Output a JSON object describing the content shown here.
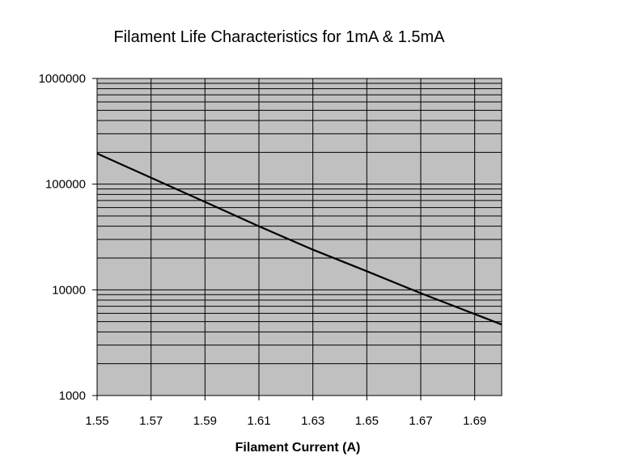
{
  "chart_data": {
    "type": "line",
    "title": "Filament Life Characteristics for 1mA & 1.5mA",
    "xlabel": "Filament Current (A)",
    "ylabel": "",
    "xlim": [
      1.55,
      1.7
    ],
    "ylim": [
      1000,
      1000000
    ],
    "yscale": "log",
    "grid": true,
    "legend": "none",
    "x_ticks": [
      "1.55",
      "1.57",
      "1.59",
      "1.61",
      "1.63",
      "1.65",
      "1.67",
      "1.69"
    ],
    "y_ticks": [
      "1000",
      "10000",
      "100000",
      "1000000"
    ],
    "series": [
      {
        "x": [
          1.55,
          1.57,
          1.59,
          1.61,
          1.63,
          1.65,
          1.67,
          1.69,
          1.7
        ],
        "y": [
          195000,
          115000,
          68000,
          40000,
          24000,
          15000,
          9300,
          5900,
          4700
        ]
      }
    ],
    "colors": {
      "plot_background": "#c0c0c0",
      "grid": "#000000",
      "line": "#000000"
    }
  }
}
